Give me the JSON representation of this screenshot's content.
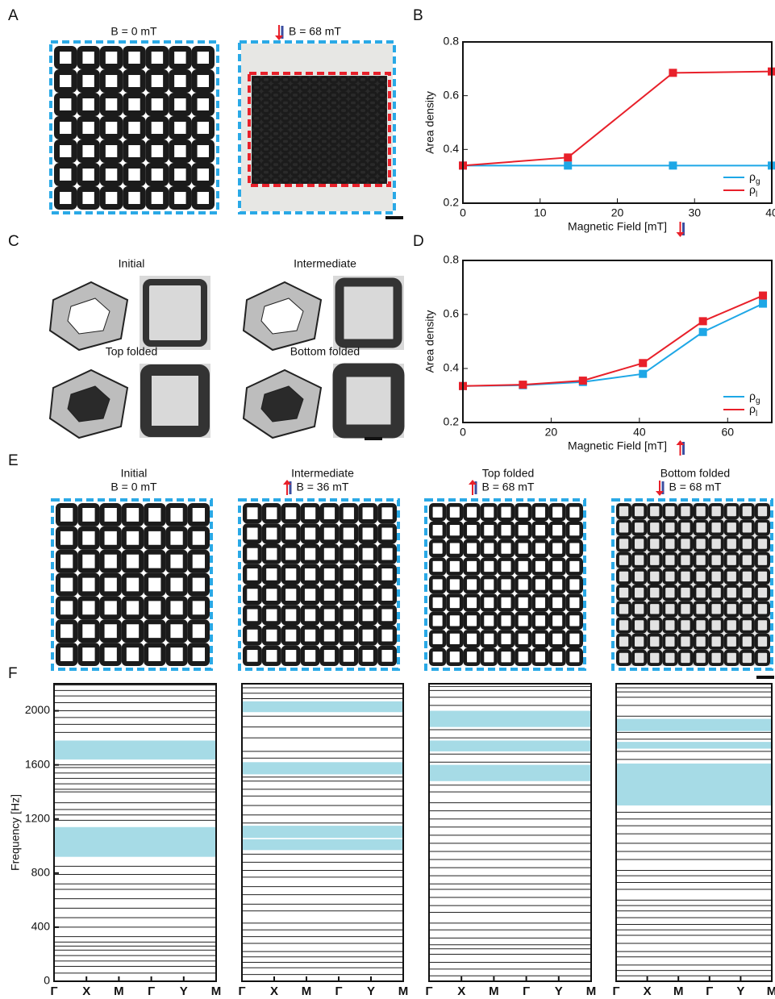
{
  "panel_labels": [
    "A",
    "B",
    "C",
    "D",
    "E",
    "F"
  ],
  "panel_a": {
    "titles": [
      "B = 0 mT",
      "B = 68 mT"
    ]
  },
  "panel_c": {
    "titles": [
      "Initial",
      "Intermediate",
      "Top folded",
      "Bottom folded"
    ]
  },
  "panel_e": {
    "titles": [
      [
        "Initial",
        "B = 0 mT"
      ],
      [
        "Intermediate",
        "B = 36 mT"
      ],
      [
        "Top folded",
        "B = 68 mT"
      ],
      [
        "Bottom folded",
        "B = 68 mT"
      ]
    ]
  },
  "chart_data": [
    {
      "type": "line",
      "xlabel": "Magnetic Field [mT]",
      "ylabel": "Area density",
      "xlim": [
        0,
        40
      ],
      "xticks": [
        0,
        10,
        20,
        30,
        40
      ],
      "ylim": [
        0.2,
        0.8
      ],
      "yticks": [
        0.2,
        0.4,
        0.6,
        0.8
      ],
      "x": [
        0,
        13.6,
        27.2,
        40
      ],
      "legend": "lower right",
      "series": [
        {
          "name": "ρ",
          "subscript": "g",
          "color": "#1ea7e6",
          "values": [
            0.34,
            0.34,
            0.34,
            0.34
          ]
        },
        {
          "name": "ρ",
          "subscript": "l",
          "color": "#e8202a",
          "values": [
            0.34,
            0.37,
            0.685,
            0.69
          ]
        }
      ]
    },
    {
      "type": "line",
      "xlabel": "Magnetic Field [mT]",
      "ylabel": "Area density",
      "xlim": [
        0,
        70
      ],
      "xticks": [
        0,
        20,
        40,
        60
      ],
      "ylim": [
        0.2,
        0.8
      ],
      "yticks": [
        0.2,
        0.4,
        0.6,
        0.8
      ],
      "x": [
        0,
        13.6,
        27.2,
        40.8,
        54.4,
        68
      ],
      "legend": "lower right",
      "series": [
        {
          "name": "ρ",
          "subscript": "g",
          "color": "#1ea7e6",
          "values": [
            0.335,
            0.338,
            0.35,
            0.38,
            0.535,
            0.64
          ]
        },
        {
          "name": "ρ",
          "subscript": "l",
          "color": "#e8202a",
          "values": [
            0.335,
            0.34,
            0.355,
            0.42,
            0.575,
            0.67
          ]
        }
      ]
    },
    {
      "type": "band",
      "ylabel": "Frequency [Hz]",
      "categories": [
        "Γ",
        "X",
        "M",
        "Γ",
        "Y",
        "M"
      ],
      "ylim": [
        0,
        2200
      ],
      "yticks": [
        0,
        400,
        800,
        1200,
        1600,
        2000
      ],
      "gap_color": "#a6dbe6",
      "gaps": [
        [
          1640,
          1780
        ],
        [
          920,
          1140
        ]
      ],
      "bands": [
        60,
        110,
        150,
        190,
        230,
        260,
        290,
        330,
        400,
        470,
        540,
        610,
        680,
        720,
        790,
        850,
        1190,
        1230,
        1270,
        1320,
        1400,
        1420,
        1460,
        1500,
        1540,
        1580,
        1600,
        1840,
        1900,
        1950,
        2000,
        2060,
        2110,
        2150,
        2190
      ]
    },
    {
      "type": "band",
      "categories": [
        "Γ",
        "X",
        "M",
        "Γ",
        "Y",
        "M"
      ],
      "ylim": [
        0,
        2200
      ],
      "gap_color": "#a6dbe6",
      "gaps": [
        [
          1990,
          2070
        ],
        [
          1530,
          1620
        ],
        [
          1060,
          1150
        ],
        [
          970,
          1050
        ]
      ],
      "bands": [
        50,
        100,
        140,
        180,
        220,
        280,
        330,
        380,
        430,
        520,
        570,
        640,
        700,
        770,
        820,
        880,
        940,
        1170,
        1230,
        1300,
        1370,
        1420,
        1480,
        1510,
        1650,
        1700,
        1800,
        1880,
        1960,
        2090,
        2130,
        2170
      ]
    },
    {
      "type": "band",
      "categories": [
        "Γ",
        "X",
        "M",
        "Γ",
        "Y",
        "M"
      ],
      "ylim": [
        0,
        2200
      ],
      "gap_color": "#a6dbe6",
      "gaps": [
        [
          1880,
          2000
        ],
        [
          1700,
          1780
        ],
        [
          1480,
          1600
        ]
      ],
      "bands": [
        40,
        90,
        140,
        200,
        240,
        270,
        320,
        380,
        430,
        510,
        560,
        620,
        680,
        720,
        780,
        840,
        900,
        960,
        1020,
        1080,
        1140,
        1200,
        1260,
        1320,
        1400,
        1450,
        1620,
        1680,
        1800,
        1860,
        2040,
        2100,
        2150,
        2180
      ]
    },
    {
      "type": "band",
      "categories": [
        "Γ",
        "X",
        "M",
        "Γ",
        "Y",
        "M"
      ],
      "ylim": [
        0,
        2200
      ],
      "gap_color": "#a6dbe6",
      "gaps": [
        [
          1850,
          1940
        ],
        [
          1720,
          1770
        ],
        [
          1300,
          1610
        ]
      ],
      "bands": [
        40,
        80,
        120,
        180,
        220,
        280,
        340,
        380,
        420,
        470,
        520,
        560,
        600,
        680,
        730,
        780,
        820,
        900,
        960,
        1020,
        1090,
        1150,
        1200,
        1250,
        1640,
        1700,
        1790,
        1840,
        1960,
        2040,
        2100,
        2140,
        2170,
        2200
      ]
    }
  ]
}
